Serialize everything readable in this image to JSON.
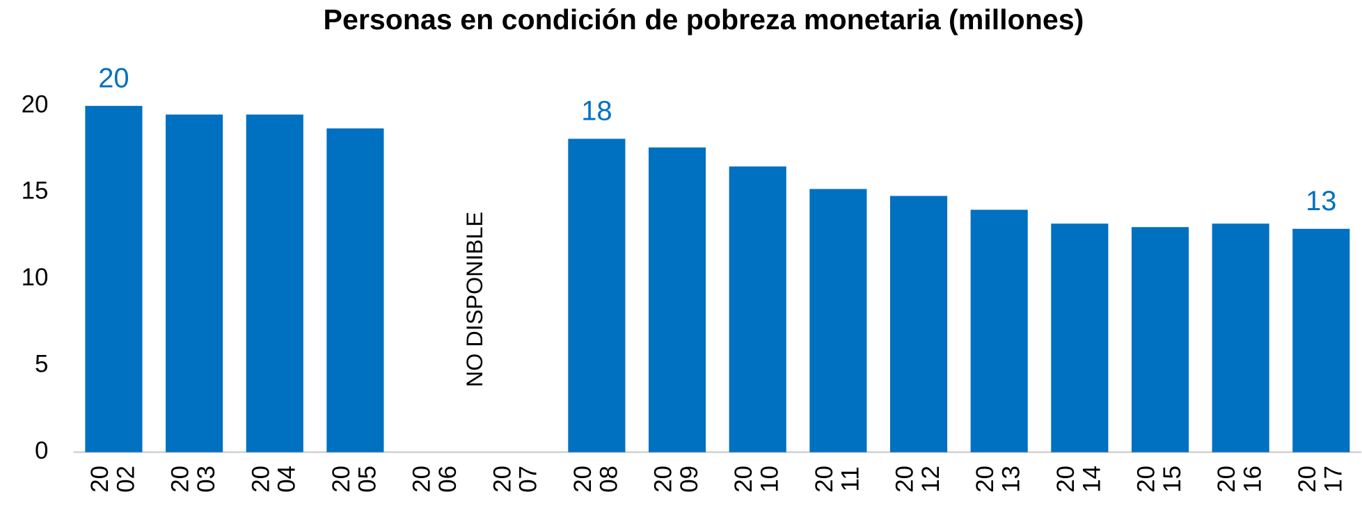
{
  "chart_data": {
    "type": "bar",
    "title": "Personas en condición de pobreza monetaria (millones)",
    "categories": [
      "2002",
      "2003",
      "2004",
      "2005",
      "2006",
      "2007",
      "2008",
      "2009",
      "2010",
      "2011",
      "2012",
      "2013",
      "2014",
      "2015",
      "2016",
      "2017"
    ],
    "values": [
      20,
      19.5,
      19.5,
      18.7,
      null,
      null,
      18.1,
      17.6,
      16.5,
      15.2,
      14.8,
      14.0,
      13.2,
      13.0,
      13.2,
      12.9
    ],
    "value_labels": [
      "20",
      null,
      null,
      null,
      null,
      null,
      "18",
      null,
      null,
      null,
      null,
      null,
      null,
      null,
      null,
      "13"
    ],
    "annotation": "NO DISPONIBLE",
    "color": "#0070c0",
    "ylim": [
      0,
      20
    ],
    "yticks": [
      0,
      5,
      10,
      15,
      20
    ],
    "grid": false
  }
}
